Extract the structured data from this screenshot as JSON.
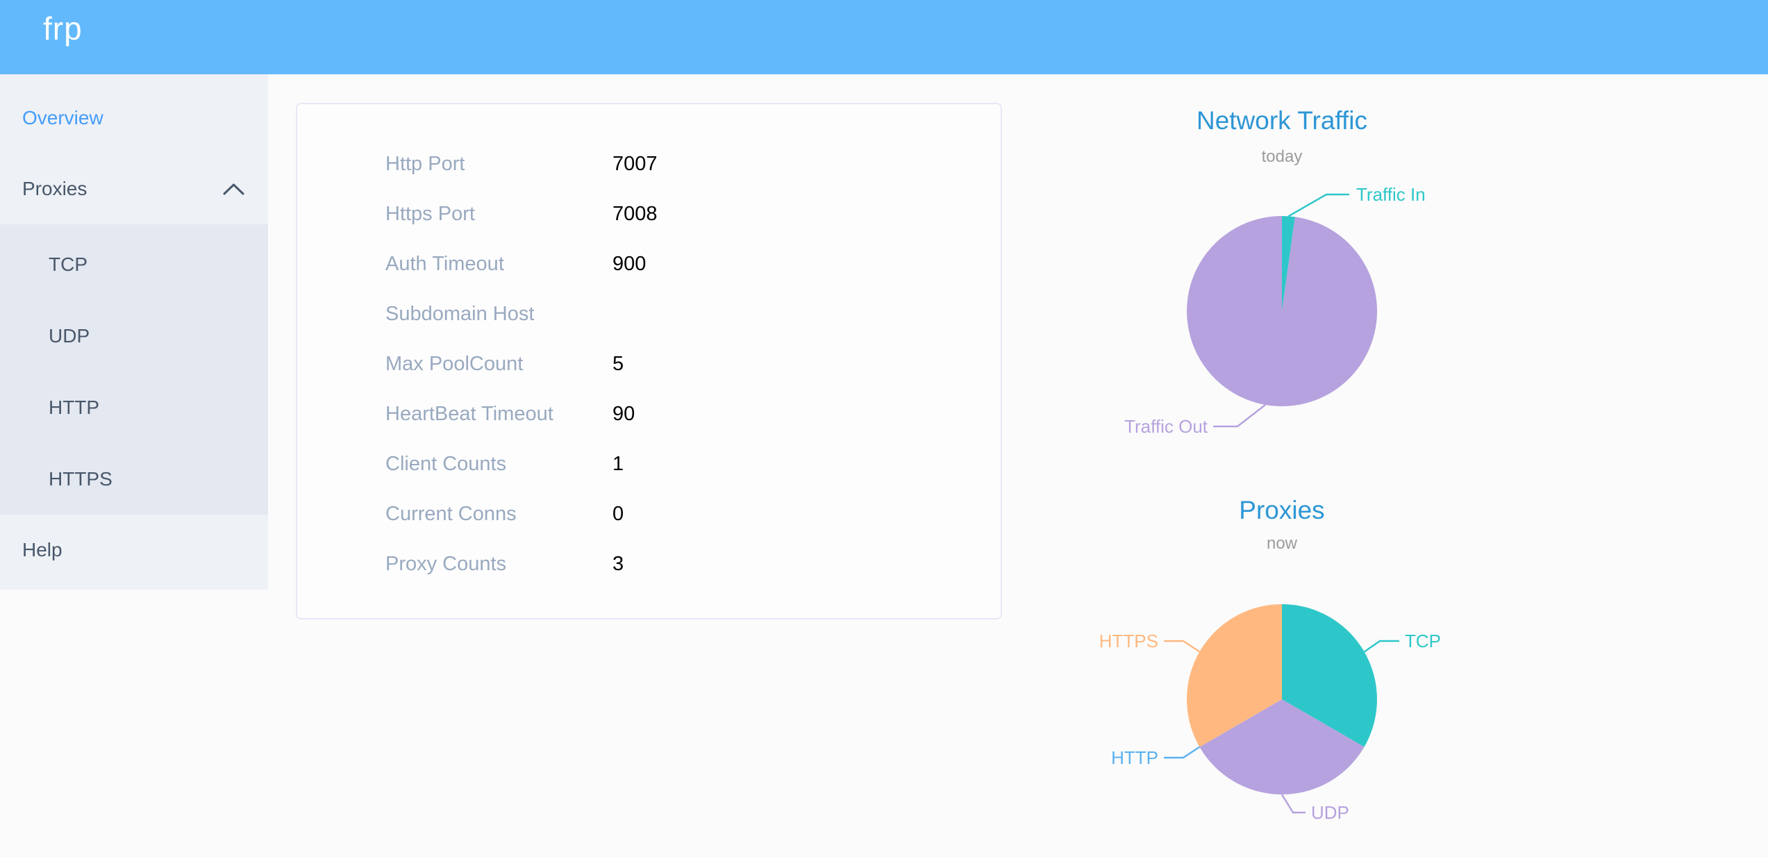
{
  "header": {
    "logo": "frp"
  },
  "sidebar": {
    "items": [
      {
        "label": "Overview",
        "active": true
      },
      {
        "label": "Proxies",
        "expanded": true,
        "children": [
          "TCP",
          "UDP",
          "HTTP",
          "HTTPS"
        ]
      },
      {
        "label": "Help",
        "active": false
      }
    ]
  },
  "overview_panel": {
    "rows": [
      {
        "label": "Http Port",
        "value": "7007"
      },
      {
        "label": "Https Port",
        "value": "7008"
      },
      {
        "label": "Auth Timeout",
        "value": "900"
      },
      {
        "label": "Subdomain Host",
        "value": ""
      },
      {
        "label": "Max PoolCount",
        "value": "5"
      },
      {
        "label": "HeartBeat Timeout",
        "value": "90"
      },
      {
        "label": "Client Counts",
        "value": "1"
      },
      {
        "label": "Current Conns",
        "value": "0"
      },
      {
        "label": "Proxy Counts",
        "value": "3"
      }
    ]
  },
  "chart_data": [
    {
      "type": "pie",
      "title": "Network Traffic",
      "subtitle": "today",
      "legend_position": "callout-labels",
      "series": [
        {
          "name": "Traffic In",
          "value": 2.2,
          "color": "#2ec7c9"
        },
        {
          "name": "Traffic Out",
          "value": 97.8,
          "color": "#b6a2de"
        }
      ],
      "unit": "percent-of-total"
    },
    {
      "type": "pie",
      "title": "Proxies",
      "subtitle": "now",
      "legend_position": "callout-labels",
      "series": [
        {
          "name": "TCP",
          "value": 1,
          "color": "#2ec7c9"
        },
        {
          "name": "UDP",
          "value": 1,
          "color": "#b6a2de"
        },
        {
          "name": "HTTP",
          "value": 0,
          "color": "#5ab1ef"
        },
        {
          "name": "HTTPS",
          "value": 1,
          "color": "#ffb980"
        }
      ],
      "unit": "proxy-count"
    }
  ],
  "colors": {
    "header_background": "#62b9fc",
    "sidebar_background": "#eef1f6",
    "submenu_background": "#e4e8f1",
    "menu_text": "#48576a",
    "menu_active": "#449df9",
    "panel_label": "#99a9bf",
    "chart_title_blue": "#2d96d6",
    "pie_teal": "#2ec7c9",
    "pie_purple": "#b6a2de",
    "pie_blue": "#5ab1ef",
    "pie_orange": "#ffb980"
  }
}
